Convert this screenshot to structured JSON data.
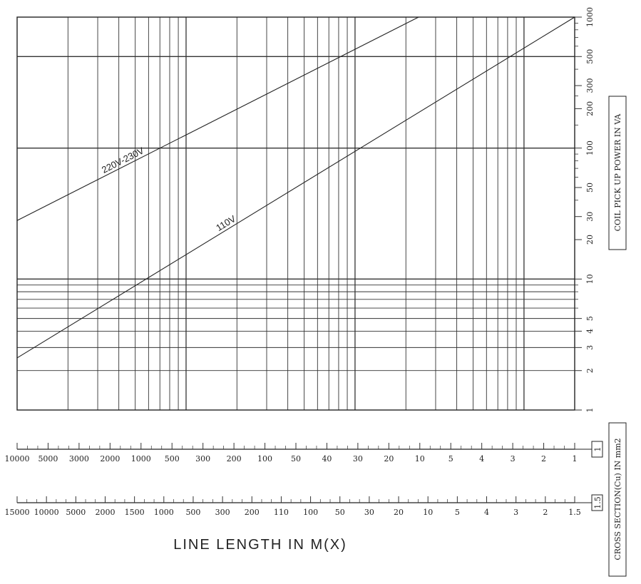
{
  "chart_data": {
    "type": "line",
    "title": "",
    "xlabel": "LINE LENGTH IN M(X)",
    "ylabel": "COIL PICK UP POWER IN VA",
    "y_scale": "log",
    "ylim": [
      1,
      1000
    ],
    "y_ticks": [
      "1",
      "2",
      "3",
      "4",
      "5",
      "10",
      "20",
      "30",
      "50",
      "100",
      "200",
      "300",
      "500",
      "1000"
    ],
    "series": [
      {
        "name": "220V-230V",
        "x_frac": [
          0,
          0.72
        ],
        "y": [
          28,
          1000
        ]
      },
      {
        "name": "110V",
        "x_frac": [
          0,
          1.0
        ],
        "y": [
          2.5,
          1000
        ]
      }
    ],
    "cross_section_label": "CROSS SECTION(Cu) IN mm2",
    "scales": [
      {
        "section": "1",
        "tick_labels": [
          "10000",
          "5000",
          "3000",
          "2000",
          "1000",
          "500",
          "300",
          "200",
          "100",
          "50",
          "40",
          "30",
          "20",
          "10",
          "5",
          "4",
          "3",
          "2",
          "1"
        ]
      },
      {
        "section": "1.5",
        "tick_labels": [
          "15000",
          "10000",
          "5000",
          "2000",
          "1500",
          "1000",
          "500",
          "300",
          "200",
          "110",
          "100",
          "50",
          "30",
          "20",
          "10",
          "5",
          "4",
          "3",
          "2",
          "1.5"
        ]
      }
    ]
  }
}
